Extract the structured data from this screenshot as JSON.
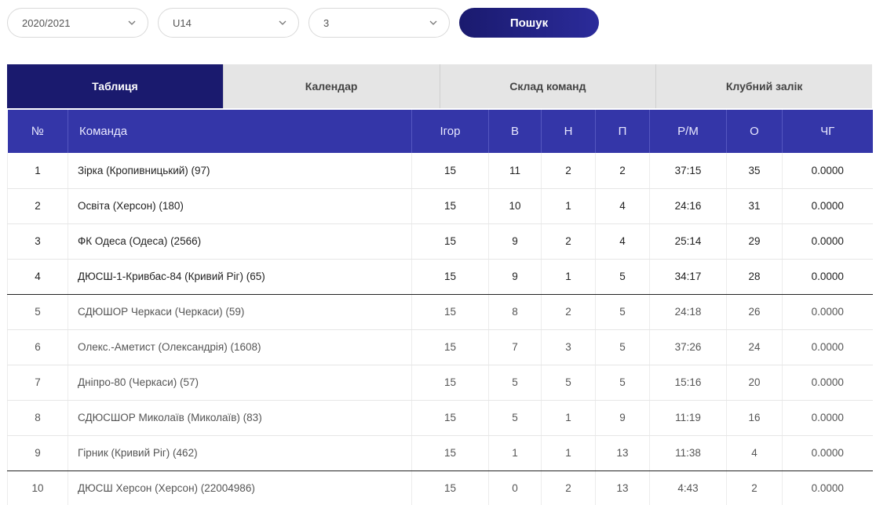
{
  "filters": {
    "season": "2020/2021",
    "age_group": "U14",
    "league": "3",
    "search_label": "Пошук"
  },
  "tabs": [
    {
      "label": "Таблиця",
      "active": true
    },
    {
      "label": "Календар",
      "active": false
    },
    {
      "label": "Склад команд",
      "active": false
    },
    {
      "label": "Клубний залік",
      "active": false
    }
  ],
  "columns": [
    "№",
    "Команда",
    "Ігор",
    "В",
    "Н",
    "П",
    "Р/М",
    "О",
    "ЧГ"
  ],
  "rows": [
    {
      "pos": "1",
      "team": "Зірка (Кропивницький) (97)",
      "games": "15",
      "w": "11",
      "d": "2",
      "l": "2",
      "goals": "37:15",
      "pts": "35",
      "ch": "0.0000"
    },
    {
      "pos": "2",
      "team": "Освіта (Херсон) (180)",
      "games": "15",
      "w": "10",
      "d": "1",
      "l": "4",
      "goals": "24:16",
      "pts": "31",
      "ch": "0.0000"
    },
    {
      "pos": "3",
      "team": "ФК Одеса (Одеса) (2566)",
      "games": "15",
      "w": "9",
      "d": "2",
      "l": "4",
      "goals": "25:14",
      "pts": "29",
      "ch": "0.0000"
    },
    {
      "pos": "4",
      "team": "ДЮСШ-1-Кривбас-84 (Кривий Ріг) (65)",
      "games": "15",
      "w": "9",
      "d": "1",
      "l": "5",
      "goals": "34:17",
      "pts": "28",
      "ch": "0.0000"
    },
    {
      "pos": "5",
      "team": "СДЮШОР Черкаси (Черкаси) (59)",
      "games": "15",
      "w": "8",
      "d": "2",
      "l": "5",
      "goals": "24:18",
      "pts": "26",
      "ch": "0.0000"
    },
    {
      "pos": "6",
      "team": "Олекс.-Аметист (Олександрія) (1608)",
      "games": "15",
      "w": "7",
      "d": "3",
      "l": "5",
      "goals": "37:26",
      "pts": "24",
      "ch": "0.0000"
    },
    {
      "pos": "7",
      "team": "Дніпро-80 (Черкаси) (57)",
      "games": "15",
      "w": "5",
      "d": "5",
      "l": "5",
      "goals": "15:16",
      "pts": "20",
      "ch": "0.0000"
    },
    {
      "pos": "8",
      "team": "СДЮСШОР Миколаїв (Миколаїв) (83)",
      "games": "15",
      "w": "5",
      "d": "1",
      "l": "9",
      "goals": "11:19",
      "pts": "16",
      "ch": "0.0000"
    },
    {
      "pos": "9",
      "team": "Гірник (Кривий Ріг) (462)",
      "games": "15",
      "w": "1",
      "d": "1",
      "l": "13",
      "goals": "11:38",
      "pts": "4",
      "ch": "0.0000"
    },
    {
      "pos": "10",
      "team": "ДЮСШ Херсон (Херсон) (22004986)",
      "games": "15",
      "w": "0",
      "d": "2",
      "l": "13",
      "goals": "4:43",
      "pts": "2",
      "ch": "0.0000"
    }
  ],
  "colors": {
    "primary_dark": "#1a1a6e",
    "header_blue": "#3436a8"
  }
}
